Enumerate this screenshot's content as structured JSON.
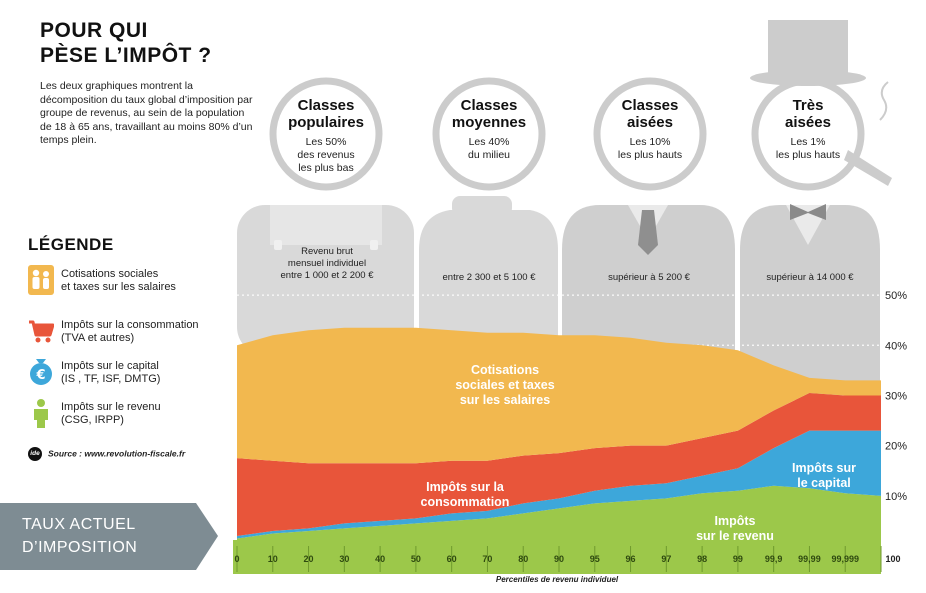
{
  "header": {
    "title_line1": "POUR QUI",
    "title_line2": "PÈSE L’IMPÔT ?",
    "description": "Les deux graphiques montrent la décomposition du taux global d’imposition par groupe de revenus, au sein de la population de 18 à 65 ans, travaillant au moins 80% d’un temps plein."
  },
  "legend": {
    "title": "LÉGENDE",
    "items": [
      {
        "line1": "Cotisations sociales",
        "line2": "et taxes sur les salaires",
        "color": "#F2B84F",
        "icon": "people-icon"
      },
      {
        "line1": "Impôts sur la consommation",
        "line2": "(TVA et autres)",
        "color": "#E8553A",
        "icon": "shopping-cart-icon"
      },
      {
        "line1": "Impôts sur le capital",
        "line2": "(IS , TF, ISF, DMTG)",
        "color": "#3DA7DA",
        "icon": "euro-coin-icon"
      },
      {
        "line1": "Impôts sur le revenu",
        "line2": "(CSG, IRPP)",
        "color": "#9CC84A",
        "icon": "person-icon"
      }
    ]
  },
  "source": {
    "mark": "ide",
    "text": "Source : www.revolution-fiscale.fr"
  },
  "taux_actuel": {
    "line1": "TAUX ACTUEL",
    "line2": "D’IMPOSITION",
    "color": "#7E8C93"
  },
  "groups": [
    {
      "title1": "Classes",
      "title2": "populaires",
      "sub1": "Les 50%",
      "sub2": "des revenus",
      "sub3": "les plus bas",
      "income1": "Revenu brut",
      "income2": "mensuel individuel",
      "income3": "entre 1 000 et 2 200 €"
    },
    {
      "title1": "Classes",
      "title2": "moyennes",
      "sub1": "Les 40%",
      "sub2": "du milieu",
      "income1": "entre 2 300 et 5 100 €"
    },
    {
      "title1": "Classes",
      "title2": "aisées",
      "sub1": "Les 10%",
      "sub2": "les plus hauts",
      "income1": "supérieur à 5 200 €"
    },
    {
      "title1": "Très",
      "title2": "aisées",
      "sub1": "Les 1%",
      "sub2": "les plus hauts",
      "income1": "supérieur à 14 000 €"
    }
  ],
  "series_labels": {
    "cotisations": [
      "Cotisations",
      "sociales et taxes",
      "sur les salaires"
    ],
    "consommation": [
      "Impôts sur la",
      "consommation"
    ],
    "capital": [
      "Impôts sur",
      "le capital"
    ],
    "revenu": [
      "Impôts",
      "sur le revenu"
    ]
  },
  "chart_data": {
    "type": "area",
    "stacked": true,
    "xlabel": "Percentiles de revenu individuel",
    "x": [
      "0",
      "10",
      "20",
      "30",
      "40",
      "50",
      "60",
      "70",
      "80",
      "90",
      "95",
      "96",
      "97",
      "98",
      "99",
      "99,9",
      "99,99",
      "99,999",
      "100"
    ],
    "y_ticks": [
      "10%",
      "20%",
      "30%",
      "40%",
      "50%"
    ],
    "ylim": [
      0,
      0.55
    ],
    "grid": true,
    "series": [
      {
        "name": "Impôts sur le revenu",
        "color": "#9CC84A",
        "values": [
          0.015,
          0.025,
          0.03,
          0.035,
          0.04,
          0.045,
          0.05,
          0.055,
          0.065,
          0.075,
          0.085,
          0.09,
          0.095,
          0.105,
          0.11,
          0.12,
          0.115,
          0.105,
          0.1
        ]
      },
      {
        "name": "Impôts sur le capital",
        "color": "#3DA7DA",
        "values": [
          0.005,
          0.005,
          0.005,
          0.01,
          0.01,
          0.01,
          0.015,
          0.015,
          0.02,
          0.02,
          0.025,
          0.03,
          0.03,
          0.035,
          0.045,
          0.075,
          0.115,
          0.125,
          0.13
        ]
      },
      {
        "name": "Impôts sur la consommation",
        "color": "#E8553A",
        "values": [
          0.155,
          0.14,
          0.13,
          0.12,
          0.115,
          0.11,
          0.105,
          0.1,
          0.095,
          0.09,
          0.085,
          0.08,
          0.075,
          0.075,
          0.075,
          0.075,
          0.075,
          0.07,
          0.07
        ]
      },
      {
        "name": "Cotisations sociales et taxes sur les salaires",
        "color": "#F2B84F",
        "values": [
          0.225,
          0.25,
          0.265,
          0.27,
          0.27,
          0.27,
          0.26,
          0.255,
          0.245,
          0.235,
          0.225,
          0.215,
          0.205,
          0.185,
          0.16,
          0.09,
          0.03,
          0.03,
          0.03
        ]
      }
    ]
  }
}
